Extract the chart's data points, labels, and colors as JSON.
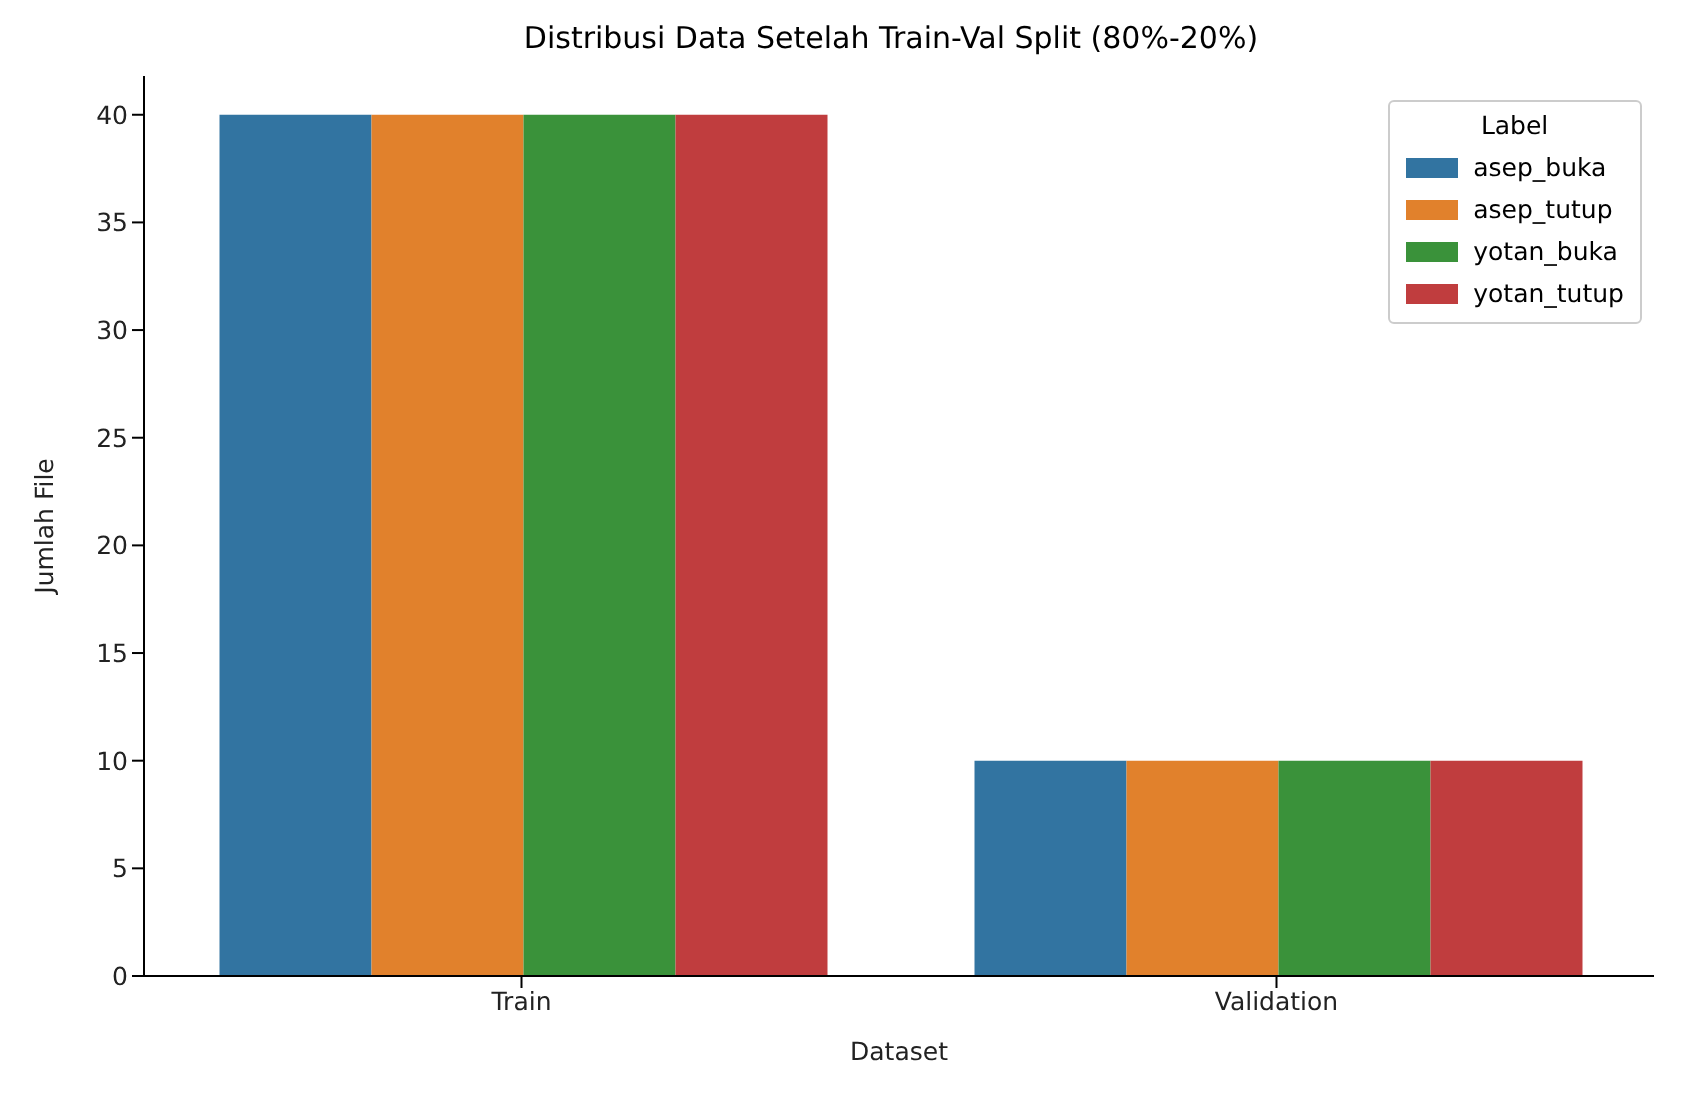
{
  "chart_data": {
    "type": "bar",
    "title": "Distribusi Data Setelah Train-Val Split (80%-20%)",
    "xlabel": "Dataset",
    "ylabel": "Jumlah File",
    "legend_title": "Label",
    "categories": [
      "Train",
      "Validation"
    ],
    "series": [
      {
        "name": "asep_buka",
        "color": "#3274a1",
        "values": [
          40,
          10
        ]
      },
      {
        "name": "asep_tutup",
        "color": "#e1812c",
        "values": [
          40,
          10
        ]
      },
      {
        "name": "yotan_buka",
        "color": "#3a923a",
        "values": [
          40,
          10
        ]
      },
      {
        "name": "yotan_tutup",
        "color": "#c03d3e",
        "values": [
          40,
          10
        ]
      }
    ],
    "ylim": [
      0,
      41.8
    ],
    "yticks": [
      0,
      5,
      10,
      15,
      20,
      25,
      30,
      35,
      40
    ],
    "legend": "top right"
  }
}
